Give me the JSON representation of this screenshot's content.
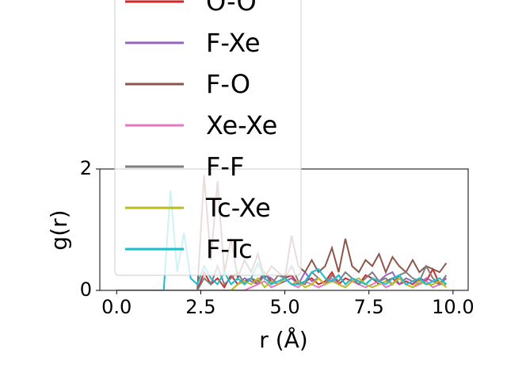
{
  "chart_data": {
    "type": "line",
    "x_label": "r (Å)",
    "y_label": "g(r)",
    "x": [
      0,
      0.2,
      0.4,
      0.6,
      0.8,
      1.0,
      1.2,
      1.4,
      1.6,
      1.8,
      2.0,
      2.2,
      2.4,
      2.6,
      2.8,
      3.0,
      3.2,
      3.4,
      3.6,
      3.8,
      4.0,
      4.2,
      4.4,
      4.6,
      4.8,
      5.0,
      5.2,
      5.4,
      5.6,
      5.8,
      6.0,
      6.2,
      6.4,
      6.6,
      6.8,
      7.0,
      7.2,
      7.4,
      7.6,
      7.8,
      8.0,
      8.2,
      8.4,
      8.6,
      8.8,
      9.0,
      9.2,
      9.4,
      9.6,
      9.8
    ],
    "series": [
      {
        "name": "O-O",
        "color": "#d62728",
        "values": [
          0,
          0,
          0,
          0,
          0,
          0,
          0,
          0,
          0,
          0,
          0,
          0,
          0,
          0.3,
          0.1,
          0.2,
          0.05,
          0.25,
          0.1,
          0.15,
          0.2,
          0.1,
          0.3,
          0.15,
          0.1,
          0.2,
          0.25,
          0.1,
          0.15,
          0.2,
          0.1,
          0.15,
          0.3,
          0.1,
          0.2,
          0.15,
          0.1,
          0.25,
          0.2,
          0.1,
          0.15,
          0.2,
          0.1,
          0.15,
          0.1,
          0.2,
          0.15,
          0.35,
          0.1,
          0.2
        ]
      },
      {
        "name": "F-Xe",
        "color": "#9467bd",
        "values": [
          0,
          0,
          0,
          0,
          0,
          0,
          0,
          0,
          0,
          0,
          0,
          0,
          0,
          0,
          0,
          0,
          0,
          0,
          0.1,
          0.2,
          0.15,
          0.1,
          0.25,
          0.2,
          0.1,
          0.15,
          0.2,
          0.1,
          0.3,
          0.15,
          0.2,
          0.1,
          0.15,
          0.25,
          0.1,
          0.2,
          0.15,
          0.1,
          0.2,
          0.15,
          0.25,
          0.3,
          0.1,
          0.2,
          0.15,
          0.1,
          0.2,
          0.15,
          0.1,
          0.2
        ]
      },
      {
        "name": "F-O",
        "color": "#8c564b",
        "values": [
          0,
          0,
          0,
          0,
          0,
          0,
          0,
          0,
          0,
          0,
          0,
          0,
          0,
          1.9,
          0.5,
          1.8,
          0.3,
          0.85,
          0.2,
          0.5,
          0.3,
          0.6,
          0.2,
          0.4,
          0.3,
          0.2,
          0.9,
          0.4,
          0.3,
          0.5,
          0.3,
          0.4,
          0.7,
          0.3,
          0.85,
          0.4,
          0.3,
          0.5,
          0.4,
          0.6,
          0.3,
          0.55,
          0.4,
          0.3,
          0.5,
          0.3,
          0.4,
          0.35,
          0.3,
          0.45
        ]
      },
      {
        "name": "Xe-Xe",
        "color": "#e377c2",
        "values": [
          0,
          0,
          0,
          0,
          0,
          0,
          0,
          0,
          0,
          0,
          0,
          0,
          0,
          0,
          0,
          0,
          0,
          0,
          0,
          0,
          0.05,
          0.1,
          0.15,
          0.05,
          0.1,
          0.2,
          0.1,
          0.05,
          0.15,
          0.1,
          0.05,
          0.1,
          0.2,
          0.1,
          0.05,
          0.15,
          0.1,
          0.05,
          0.1,
          0.15,
          0.05,
          0.1,
          0.2,
          0.1,
          0.05,
          0.1,
          0.15,
          0.05,
          0.1,
          0.1
        ]
      },
      {
        "name": "F-F",
        "color": "#7f7f7f",
        "values": [
          0,
          0,
          0,
          0,
          0,
          0,
          0,
          0,
          0,
          0,
          0,
          0,
          0,
          0.2,
          0.1,
          0.4,
          0.1,
          0.2,
          0.3,
          0.1,
          0.2,
          0.15,
          0.3,
          0.1,
          0.25,
          0.2,
          0.4,
          0.15,
          0.1,
          0.3,
          0.2,
          0.1,
          0.25,
          0.15,
          0.3,
          0.2,
          0.1,
          0.2,
          0.3,
          0.15,
          0.2,
          0.1,
          0.25,
          0.3,
          0.2,
          0.15,
          0.4,
          0.2,
          0.1,
          0.25
        ]
      },
      {
        "name": "Tc-Xe",
        "color": "#bcbd22",
        "values": [
          0,
          0,
          0,
          0,
          0,
          0,
          0,
          0,
          0,
          0,
          0,
          0,
          0,
          0,
          0,
          0,
          0,
          0,
          0.1,
          0.15,
          0.1,
          0.2,
          0.05,
          0.15,
          0.1,
          0.2,
          0.1,
          0.15,
          0.05,
          0.1,
          0.2,
          0.1,
          0.15,
          0.1,
          0.05,
          0.15,
          0.2,
          0.1,
          0.05,
          0.1,
          0.15,
          0.1,
          0.2,
          0.1,
          0.05,
          0.15,
          0.1,
          0.1,
          0.15,
          0.05
        ]
      },
      {
        "name": "F-Tc",
        "color": "#17becf",
        "values": [
          0,
          0,
          0,
          0,
          0,
          0,
          0,
          0,
          1.65,
          0.3,
          0.95,
          0.2,
          0.1,
          0.4,
          0.2,
          0.1,
          0.3,
          0.1,
          0.2,
          0.1,
          0.2,
          0.45,
          0.2,
          0.1,
          0.15,
          0.2,
          0.1,
          0.1,
          0.15,
          0.3,
          0.35,
          0.2,
          0.15,
          0.25,
          0.1,
          0.2,
          0.15,
          0.1,
          0.2,
          0.15,
          0.1,
          0.2,
          0.25,
          0.1,
          0.15,
          0.2,
          0.1,
          0.15,
          0.2,
          0.1
        ]
      }
    ],
    "xlim": [
      -0.5,
      10.45
    ],
    "ylim": [
      0,
      2
    ],
    "xticks": [
      {
        "value": 0,
        "label": "0.0"
      },
      2.5,
      {
        "value": 5,
        "label": "5.0"
      },
      7.5,
      {
        "value": 10,
        "label": "10.0"
      }
    ],
    "yticks": [
      0,
      2
    ]
  }
}
